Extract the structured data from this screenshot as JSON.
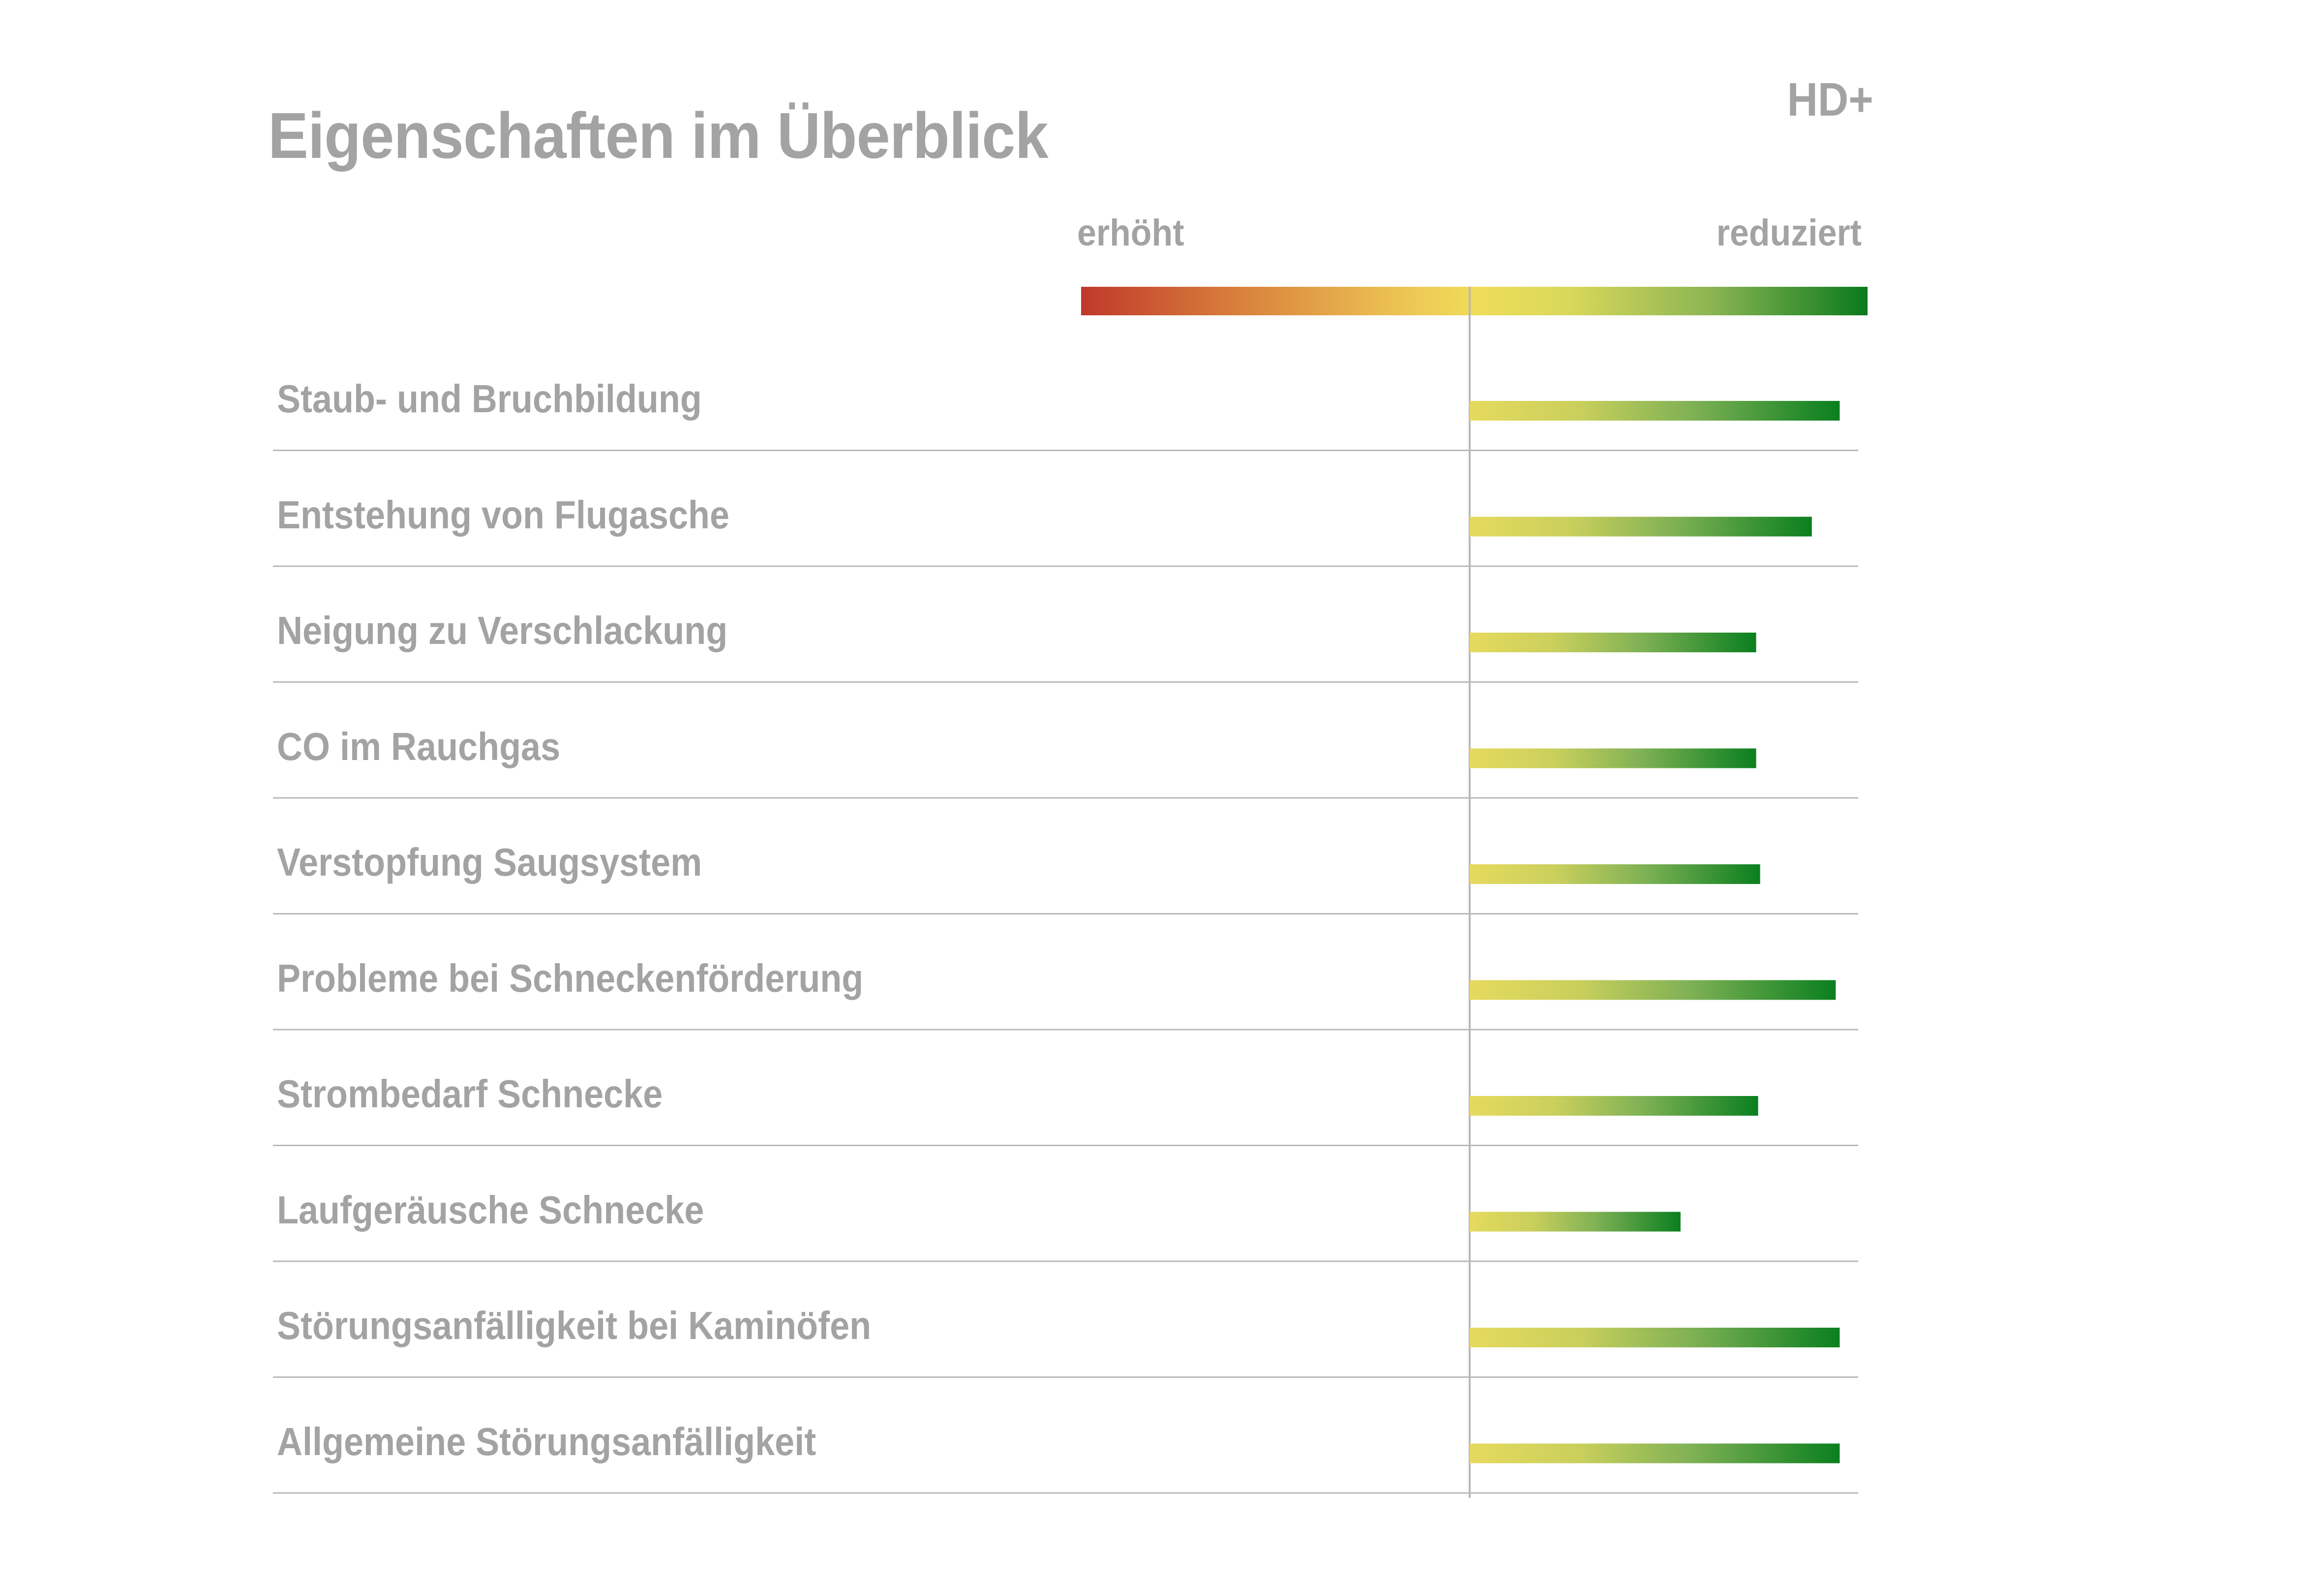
{
  "title": "Eigenschaften im Überblick",
  "product": "HD+",
  "scale": {
    "left_label": "erhöht",
    "right_label": "reduziert",
    "colors": [
      "#c0392b",
      "#f0dc5a",
      "#0a7a1e"
    ]
  },
  "chart_data": {
    "type": "bar",
    "orientation": "horizontal",
    "categories": [
      "Staub- und Bruchbildung",
      "Entstehung von Flugasche",
      "Neigung zu Verschlackung",
      "CO im Rauchgas",
      "Verstopfung Saugsystem",
      "Probleme bei Schneckenförderung",
      "Strombedarf Schnecke",
      "Laufgeräusche Schnecke",
      "Störungsanfälligkeit bei Kaminöfen",
      "Allgemeine Störungsanfälligkeit"
    ],
    "values": [
      0.93,
      0.86,
      0.72,
      0.72,
      0.73,
      0.92,
      0.725,
      0.53,
      0.93,
      0.93
    ],
    "xlim": [
      -1,
      1
    ],
    "grid": false,
    "legend": "none",
    "bar_colors": [
      "#e6da5e",
      "#0a7f1f"
    ]
  }
}
